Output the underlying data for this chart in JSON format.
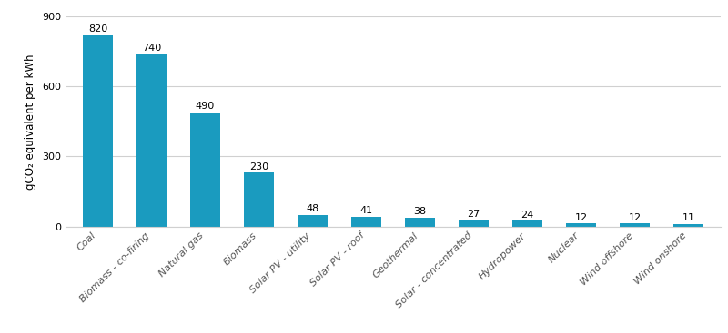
{
  "categories": [
    "Coal",
    "Biomass - co-firing",
    "Natural gas",
    "Biomass",
    "Solar PV - utility",
    "Solar PV - roof",
    "Geothermal",
    "Solar - concentrated",
    "Hydropower",
    "Nuclear",
    "Wind offshore",
    "Wind onshore"
  ],
  "values": [
    820,
    740,
    490,
    230,
    48,
    41,
    38,
    27,
    24,
    12,
    12,
    11
  ],
  "bar_color": "#1a9bbf",
  "background_color": "#ffffff",
  "ylabel": "gCO₂ equivalent per kWh",
  "ylim": [
    0,
    900
  ],
  "yticks": [
    0,
    300,
    600,
    900
  ],
  "grid_color": "#d0d0d0",
  "label_fontsize": 8,
  "value_fontsize": 8,
  "ylabel_fontsize": 8.5,
  "tick_fontsize": 8,
  "bar_width": 0.55
}
